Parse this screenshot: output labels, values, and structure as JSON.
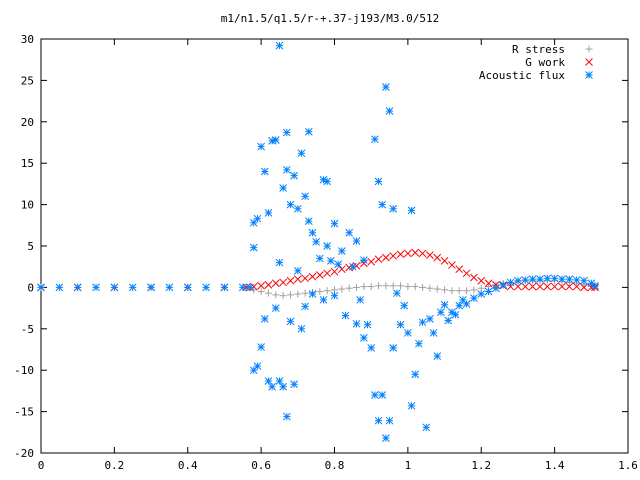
{
  "chart_data": {
    "type": "scatter",
    "title": "m1/n1.5/q1.5/r-+.37-j193/M3.0/512",
    "xlabel": "",
    "ylabel": "",
    "xlim": [
      0,
      1.6
    ],
    "ylim": [
      -20,
      30
    ],
    "x_ticks": [
      "0",
      "0.2",
      "0.4",
      "0.6",
      "0.8",
      "1",
      "1.2",
      "1.4",
      "1.6"
    ],
    "y_ticks": [
      "30",
      "25",
      "20",
      "15",
      "10",
      "5",
      "0",
      "-5",
      "-10",
      "-15",
      "-20"
    ],
    "grid": false,
    "legend_position": "top-right",
    "series": [
      {
        "name": "R stress",
        "marker": "+",
        "color": "#a0a0a0",
        "points": [
          [
            0.0,
            0
          ],
          [
            0.1,
            0
          ],
          [
            0.2,
            0
          ],
          [
            0.3,
            0
          ],
          [
            0.4,
            0
          ],
          [
            0.5,
            0
          ],
          [
            0.56,
            0
          ],
          [
            0.58,
            -0.3
          ],
          [
            0.6,
            -0.5
          ],
          [
            0.62,
            -0.7
          ],
          [
            0.64,
            -0.9
          ],
          [
            0.66,
            -1.0
          ],
          [
            0.68,
            -0.9
          ],
          [
            0.7,
            -0.8
          ],
          [
            0.72,
            -0.7
          ],
          [
            0.74,
            -0.6
          ],
          [
            0.76,
            -0.5
          ],
          [
            0.78,
            -0.4
          ],
          [
            0.8,
            -0.3
          ],
          [
            0.82,
            -0.2
          ],
          [
            0.84,
            -0.1
          ],
          [
            0.86,
            0.0
          ],
          [
            0.88,
            0.1
          ],
          [
            0.9,
            0.1
          ],
          [
            0.92,
            0.2
          ],
          [
            0.94,
            0.2
          ],
          [
            0.96,
            0.2
          ],
          [
            0.98,
            0.2
          ],
          [
            1.0,
            0.1
          ],
          [
            1.02,
            0.1
          ],
          [
            1.04,
            0.0
          ],
          [
            1.06,
            -0.1
          ],
          [
            1.08,
            -0.2
          ],
          [
            1.1,
            -0.3
          ],
          [
            1.12,
            -0.4
          ],
          [
            1.14,
            -0.4
          ],
          [
            1.16,
            -0.4
          ],
          [
            1.18,
            -0.3
          ],
          [
            1.2,
            -0.1
          ],
          [
            1.22,
            0.1
          ],
          [
            1.24,
            0.3
          ],
          [
            1.26,
            0.5
          ],
          [
            1.28,
            0.6
          ],
          [
            1.3,
            0.7
          ],
          [
            1.32,
            0.8
          ],
          [
            1.34,
            0.8
          ],
          [
            1.36,
            0.8
          ],
          [
            1.38,
            0.8
          ],
          [
            1.4,
            0.8
          ],
          [
            1.42,
            0.7
          ],
          [
            1.44,
            0.6
          ],
          [
            1.46,
            0.5
          ],
          [
            1.48,
            0.4
          ],
          [
            1.5,
            0.2
          ],
          [
            1.51,
            0.1
          ]
        ]
      },
      {
        "name": "G work",
        "marker": "x",
        "color": "#ff0000",
        "points": [
          [
            0.0,
            0
          ],
          [
            0.1,
            0
          ],
          [
            0.2,
            0
          ],
          [
            0.3,
            0
          ],
          [
            0.4,
            0
          ],
          [
            0.5,
            0
          ],
          [
            0.56,
            0
          ],
          [
            0.58,
            0.1
          ],
          [
            0.6,
            0.2
          ],
          [
            0.62,
            0.3
          ],
          [
            0.64,
            0.5
          ],
          [
            0.66,
            0.6
          ],
          [
            0.68,
            0.8
          ],
          [
            0.7,
            1.0
          ],
          [
            0.72,
            1.1
          ],
          [
            0.74,
            1.3
          ],
          [
            0.76,
            1.5
          ],
          [
            0.78,
            1.7
          ],
          [
            0.8,
            1.9
          ],
          [
            0.82,
            2.2
          ],
          [
            0.84,
            2.4
          ],
          [
            0.86,
            2.6
          ],
          [
            0.88,
            2.9
          ],
          [
            0.9,
            3.1
          ],
          [
            0.92,
            3.4
          ],
          [
            0.94,
            3.6
          ],
          [
            0.96,
            3.8
          ],
          [
            0.98,
            4.0
          ],
          [
            1.0,
            4.1
          ],
          [
            1.02,
            4.2
          ],
          [
            1.04,
            4.1
          ],
          [
            1.06,
            3.9
          ],
          [
            1.08,
            3.6
          ],
          [
            1.1,
            3.2
          ],
          [
            1.12,
            2.7
          ],
          [
            1.14,
            2.2
          ],
          [
            1.16,
            1.7
          ],
          [
            1.18,
            1.2
          ],
          [
            1.2,
            0.8
          ],
          [
            1.22,
            0.5
          ],
          [
            1.24,
            0.3
          ],
          [
            1.26,
            0.2
          ],
          [
            1.28,
            0.1
          ],
          [
            1.3,
            0.1
          ],
          [
            1.32,
            0.1
          ],
          [
            1.34,
            0.1
          ],
          [
            1.36,
            0.1
          ],
          [
            1.38,
            0.1
          ],
          [
            1.4,
            0.1
          ],
          [
            1.42,
            0.1
          ],
          [
            1.44,
            0.1
          ],
          [
            1.46,
            0.1
          ],
          [
            1.48,
            0.0
          ],
          [
            1.5,
            0.0
          ],
          [
            1.51,
            0.0
          ]
        ]
      },
      {
        "name": "Acoustic flux",
        "marker": "*",
        "color": "#0080ff",
        "points": [
          [
            0.0,
            0
          ],
          [
            0.05,
            0
          ],
          [
            0.1,
            0
          ],
          [
            0.15,
            0
          ],
          [
            0.2,
            0
          ],
          [
            0.25,
            0
          ],
          [
            0.3,
            0
          ],
          [
            0.35,
            0
          ],
          [
            0.4,
            0
          ],
          [
            0.45,
            0
          ],
          [
            0.5,
            0
          ],
          [
            0.55,
            0
          ],
          [
            0.57,
            0
          ],
          [
            0.58,
            4.8
          ],
          [
            0.58,
            7.8
          ],
          [
            0.58,
            -10.0
          ],
          [
            0.59,
            8.3
          ],
          [
            0.59,
            -9.5
          ],
          [
            0.6,
            17.0
          ],
          [
            0.6,
            -7.2
          ],
          [
            0.61,
            14.0
          ],
          [
            0.61,
            -3.8
          ],
          [
            0.62,
            9.0
          ],
          [
            0.62,
            -11.3
          ],
          [
            0.63,
            17.7
          ],
          [
            0.63,
            -12.0
          ],
          [
            0.64,
            17.8
          ],
          [
            0.64,
            -2.5
          ],
          [
            0.65,
            29.2
          ],
          [
            0.65,
            3.0
          ],
          [
            0.65,
            -11.3
          ],
          [
            0.66,
            12.0
          ],
          [
            0.66,
            -12.0
          ],
          [
            0.67,
            18.7
          ],
          [
            0.67,
            14.2
          ],
          [
            0.67,
            -15.6
          ],
          [
            0.68,
            10.0
          ],
          [
            0.68,
            -4.1
          ],
          [
            0.69,
            13.5
          ],
          [
            0.69,
            -11.7
          ],
          [
            0.7,
            9.5
          ],
          [
            0.7,
            2.0
          ],
          [
            0.71,
            16.2
          ],
          [
            0.71,
            -5.0
          ],
          [
            0.72,
            11.0
          ],
          [
            0.72,
            -2.3
          ],
          [
            0.73,
            18.8
          ],
          [
            0.73,
            8.0
          ],
          [
            0.74,
            6.6
          ],
          [
            0.74,
            -0.8
          ],
          [
            0.75,
            5.5
          ],
          [
            0.76,
            3.5
          ],
          [
            0.77,
            13.0
          ],
          [
            0.77,
            -1.5
          ],
          [
            0.78,
            5.0
          ],
          [
            0.78,
            12.8
          ],
          [
            0.79,
            3.2
          ],
          [
            0.8,
            7.7
          ],
          [
            0.8,
            -1.0
          ],
          [
            0.81,
            2.8
          ],
          [
            0.82,
            4.4
          ],
          [
            0.83,
            -3.4
          ],
          [
            0.84,
            6.6
          ],
          [
            0.85,
            2.5
          ],
          [
            0.86,
            5.6
          ],
          [
            0.86,
            -4.4
          ],
          [
            0.87,
            -1.5
          ],
          [
            0.88,
            3.3
          ],
          [
            0.88,
            -6.1
          ],
          [
            0.89,
            -4.5
          ],
          [
            0.9,
            -7.3
          ],
          [
            0.91,
            17.9
          ],
          [
            0.91,
            -13.0
          ],
          [
            0.92,
            12.8
          ],
          [
            0.92,
            -16.1
          ],
          [
            0.93,
            10.0
          ],
          [
            0.93,
            -13.0
          ],
          [
            0.94,
            24.2
          ],
          [
            0.94,
            -18.2
          ],
          [
            0.95,
            21.3
          ],
          [
            0.95,
            -16.1
          ],
          [
            0.96,
            9.5
          ],
          [
            0.96,
            -7.3
          ],
          [
            0.97,
            -0.7
          ],
          [
            0.98,
            -4.5
          ],
          [
            0.99,
            -2.2
          ],
          [
            1.0,
            -5.5
          ],
          [
            1.01,
            9.3
          ],
          [
            1.01,
            -14.3
          ],
          [
            1.02,
            -10.5
          ],
          [
            1.03,
            -6.8
          ],
          [
            1.04,
            -4.2
          ],
          [
            1.05,
            -16.9
          ],
          [
            1.06,
            -3.8
          ],
          [
            1.07,
            -5.5
          ],
          [
            1.08,
            -8.3
          ],
          [
            1.09,
            -3.0
          ],
          [
            1.1,
            -2.1
          ],
          [
            1.11,
            -4.0
          ],
          [
            1.12,
            -3.0
          ],
          [
            1.13,
            -3.3
          ],
          [
            1.14,
            -2.2
          ],
          [
            1.15,
            -1.5
          ],
          [
            1.16,
            -2.0
          ],
          [
            1.18,
            -1.3
          ],
          [
            1.2,
            -0.8
          ],
          [
            1.22,
            -0.5
          ],
          [
            1.24,
            -0.1
          ],
          [
            1.26,
            0.3
          ],
          [
            1.28,
            0.6
          ],
          [
            1.3,
            0.8
          ],
          [
            1.32,
            0.9
          ],
          [
            1.34,
            1.0
          ],
          [
            1.36,
            1.0
          ],
          [
            1.38,
            1.1
          ],
          [
            1.4,
            1.1
          ],
          [
            1.42,
            1.0
          ],
          [
            1.44,
            1.0
          ],
          [
            1.46,
            0.9
          ],
          [
            1.48,
            0.8
          ],
          [
            1.5,
            0.5
          ],
          [
            1.51,
            0.2
          ]
        ]
      }
    ]
  }
}
